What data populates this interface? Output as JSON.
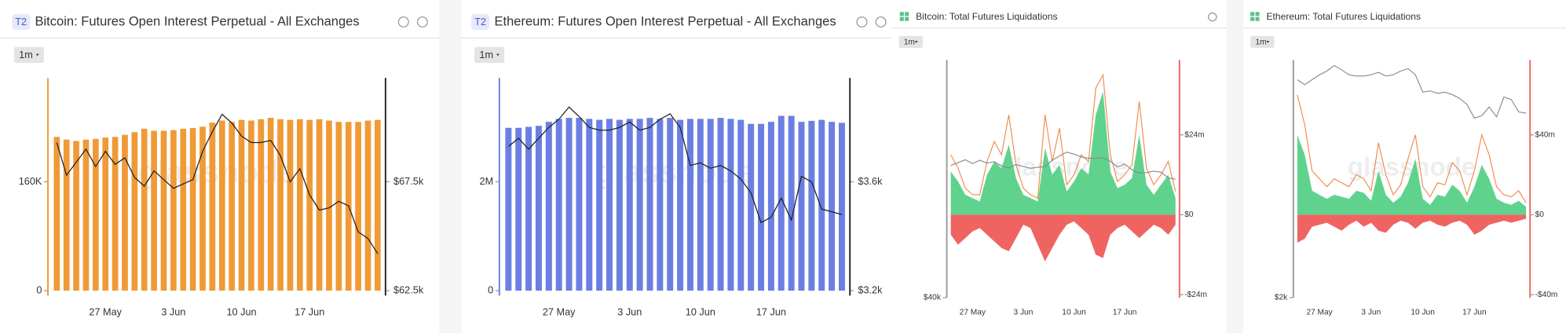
{
  "chart_data": [
    {
      "type": "bar",
      "badge": "T2",
      "title": "Bitcoin: Futures Open Interest Perpetual - All Exchanges",
      "range_button": "1m",
      "watermark": "glassnode",
      "categories": [
        null,
        null,
        null,
        null,
        null,
        "27 May",
        null,
        null,
        null,
        null,
        null,
        null,
        "3 Jun",
        null,
        null,
        null,
        null,
        null,
        null,
        "10 Jun",
        null,
        null,
        null,
        null,
        null,
        null,
        "17 Jun",
        null,
        null,
        null,
        null,
        null,
        null,
        null
      ],
      "ylim": [
        0,
        312700
      ],
      "yticks": [
        0,
        {
          "value": 160000,
          "label": "160K"
        }
      ],
      "y2lim": [
        62500,
        72270
      ],
      "y2ticks": [
        {
          "value": 62500,
          "label": "$62.5k"
        },
        {
          "value": 67500,
          "label": "$67.5k"
        }
      ],
      "series": [
        {
          "type": "bar",
          "color": "#f09a36",
          "values": [
            226000,
            222000,
            220000,
            222000,
            223000,
            225000,
            226000,
            229000,
            233000,
            238000,
            235000,
            235000,
            236000,
            238000,
            239000,
            241000,
            247000,
            250000,
            248000,
            251000,
            250000,
            252000,
            254000,
            252000,
            251000,
            252000,
            251000,
            252000,
            250000,
            248000,
            248000,
            248000,
            250000,
            251000
          ]
        },
        {
          "type": "line",
          "color": "#222222",
          "axis": "y2",
          "values": [
            69300,
            67800,
            68400,
            69000,
            68200,
            68900,
            68300,
            68600,
            67700,
            67300,
            68000,
            67600,
            67200,
            67400,
            67600,
            68900,
            69800,
            70600,
            70200,
            69600,
            69300,
            69300,
            69400,
            68700,
            67500,
            68100,
            66900,
            66200,
            66300,
            66600,
            66400,
            65200,
            64900,
            64200
          ]
        }
      ]
    },
    {
      "type": "bar",
      "badge": "T2",
      "title": "Ethereum: Futures Open Interest Perpetual - All Exchanges",
      "range_button": "1m",
      "watermark": "glassnode",
      "categories": [
        null,
        null,
        null,
        null,
        null,
        "27 May",
        null,
        null,
        null,
        null,
        null,
        null,
        "3 Jun",
        null,
        null,
        null,
        null,
        null,
        null,
        "10 Jun",
        null,
        null,
        null,
        null,
        null,
        null,
        "17 Jun",
        null,
        null,
        null,
        null,
        null,
        null,
        null
      ],
      "ylim": [
        0,
        3908000
      ],
      "yticks": [
        0,
        {
          "value": 2000000,
          "label": "2M"
        }
      ],
      "y2lim": [
        3200,
        3982
      ],
      "y2ticks": [
        {
          "value": 3200,
          "label": "$3.2k"
        },
        {
          "value": 3600,
          "label": "$3.6k"
        }
      ],
      "series": [
        {
          "type": "bar",
          "color": "#6b7fe3",
          "values": [
            2991000,
            2991000,
            3009000,
            3028000,
            3101000,
            3156000,
            3174000,
            3174000,
            3156000,
            3138000,
            3156000,
            3138000,
            3156000,
            3156000,
            3174000,
            3156000,
            3174000,
            3138000,
            3156000,
            3156000,
            3156000,
            3174000,
            3156000,
            3138000,
            3064000,
            3064000,
            3101000,
            3211000,
            3211000,
            3101000,
            3119000,
            3138000,
            3101000,
            3083000
          ]
        },
        {
          "type": "line",
          "color": "#222222",
          "axis": "y2",
          "values": [
            3730,
            3760,
            3720,
            3760,
            3800,
            3830,
            3875,
            3840,
            3800,
            3790,
            3790,
            3800,
            3820,
            3790,
            3800,
            3830,
            3850,
            3800,
            3660,
            3670,
            3650,
            3660,
            3640,
            3610,
            3560,
            3450,
            3470,
            3540,
            3460,
            3620,
            3600,
            3500,
            3490,
            3480
          ]
        }
      ]
    },
    {
      "type": "area",
      "title": "Bitcoin: Total Futures Liquidations",
      "range_button": "1m",
      "watermark": "glassnode",
      "categories": [
        null,
        null,
        null,
        "27 May",
        null,
        null,
        null,
        null,
        null,
        null,
        "3 Jun",
        null,
        null,
        null,
        null,
        null,
        null,
        "10 Jun",
        null,
        null,
        null,
        null,
        null,
        null,
        "17 Jun",
        null,
        null,
        null,
        null,
        null,
        null,
        null
      ],
      "ylim": [
        40000,
        90000
      ],
      "yticks": [
        {
          "value": 40000,
          "label": "$40k"
        }
      ],
      "y2lim": [
        -24900000,
        46500000
      ],
      "y2ticks": [
        {
          "value": -24000000,
          "label": "-$24m"
        },
        {
          "value": 0,
          "label": "$0"
        },
        {
          "value": 24000000,
          "label": "$24m"
        }
      ],
      "series": [
        {
          "type": "area",
          "color": "#5fd38d",
          "axis": "y2",
          "values": [
            13000000,
            10000000,
            6000000,
            5000000,
            4000000,
            12000000,
            16000000,
            14000000,
            21000000,
            11000000,
            6000000,
            5000000,
            4000000,
            20000000,
            12000000,
            15000000,
            7000000,
            10000000,
            14000000,
            12000000,
            30000000,
            37000000,
            13000000,
            8000000,
            9000000,
            11000000,
            24000000,
            9000000,
            6000000,
            9000000,
            12000000,
            5000000
          ]
        },
        {
          "type": "area",
          "color": "#ef6461",
          "axis": "y2",
          "values": [
            -6000000,
            -9000000,
            -7000000,
            -5000000,
            -4000000,
            -6000000,
            -8000000,
            -10000000,
            -11000000,
            -7000000,
            -3000000,
            -4000000,
            -9000000,
            -14000000,
            -10000000,
            -6000000,
            -3000000,
            -2000000,
            -4000000,
            -6000000,
            -12000000,
            -13000000,
            -6000000,
            -4000000,
            -3000000,
            -5000000,
            -7000000,
            -5000000,
            -3000000,
            -4000000,
            -6000000,
            -3000000
          ]
        },
        {
          "type": "line",
          "color": "#f08a4b",
          "axis": "y2",
          "values": [
            18000000,
            14000000,
            8000000,
            6000000,
            6000000,
            16000000,
            22000000,
            18000000,
            30000000,
            15000000,
            8000000,
            6000000,
            5000000,
            30000000,
            16000000,
            26000000,
            9000000,
            12000000,
            18000000,
            16000000,
            38000000,
            42000000,
            18000000,
            10000000,
            12000000,
            15000000,
            34000000,
            14000000,
            9000000,
            12000000,
            16000000,
            7000000
          ]
        },
        {
          "type": "line",
          "color": "#8a8a8a",
          "values": [
            67800,
            68400,
            69000,
            68200,
            68900,
            68300,
            68600,
            67700,
            67300,
            68000,
            67600,
            67200,
            67400,
            67600,
            68900,
            69800,
            70600,
            70200,
            69600,
            69300,
            69300,
            69400,
            68700,
            67500,
            68100,
            66900,
            66200,
            66300,
            66600,
            66400,
            65200,
            64900
          ]
        }
      ]
    },
    {
      "type": "area",
      "title": "Ethereum: Total Futures Liquidations",
      "range_button": "1m",
      "watermark": "glassnode",
      "categories": [
        null,
        null,
        null,
        "27 May",
        null,
        null,
        null,
        null,
        null,
        null,
        "3 Jun",
        null,
        null,
        null,
        null,
        null,
        null,
        "10 Jun",
        null,
        null,
        null,
        null,
        null,
        null,
        "17 Jun",
        null,
        null,
        null,
        null,
        null,
        null,
        null
      ],
      "ylim": [
        2000,
        3920
      ],
      "yticks": [
        {
          "value": 2000,
          "label": "$2k"
        }
      ],
      "y2lim": [
        -41500000,
        77500000
      ],
      "y2ticks": [
        {
          "value": -40000000,
          "label": "-$40m"
        },
        {
          "value": 0,
          "label": "$0"
        },
        {
          "value": 40000000,
          "label": "$40m"
        }
      ],
      "series": [
        {
          "type": "area",
          "color": "#5fd38d",
          "axis": "y2",
          "values": [
            40000000,
            30000000,
            12000000,
            10000000,
            8000000,
            10000000,
            9000000,
            8000000,
            12000000,
            11000000,
            7000000,
            22000000,
            10000000,
            6000000,
            9000000,
            16000000,
            28000000,
            8000000,
            5000000,
            10000000,
            9000000,
            15000000,
            12000000,
            6000000,
            14000000,
            25000000,
            18000000,
            8000000,
            6000000,
            5000000,
            7000000,
            4000000
          ]
        },
        {
          "type": "area",
          "color": "#ef6461",
          "axis": "y2",
          "values": [
            -14000000,
            -12000000,
            -6000000,
            -5000000,
            -4000000,
            -6000000,
            -8000000,
            -5000000,
            -3000000,
            -6000000,
            -4000000,
            -8000000,
            -9000000,
            -5000000,
            -3000000,
            -4000000,
            -7000000,
            -4000000,
            -3000000,
            -5000000,
            -6000000,
            -4000000,
            -3000000,
            -5000000,
            -10000000,
            -8000000,
            -5000000,
            -4000000,
            -3000000,
            -4000000,
            -3000000,
            -2000000
          ]
        },
        {
          "type": "line",
          "color": "#f08a4b",
          "axis": "y2",
          "values": [
            60000000,
            45000000,
            22000000,
            18000000,
            14000000,
            18000000,
            16000000,
            14000000,
            20000000,
            18000000,
            12000000,
            36000000,
            20000000,
            10000000,
            15000000,
            28000000,
            40000000,
            14000000,
            9000000,
            16000000,
            15000000,
            26000000,
            22000000,
            10000000,
            22000000,
            40000000,
            30000000,
            14000000,
            10000000,
            9000000,
            12000000,
            6000000
          ]
        },
        {
          "type": "line",
          "color": "#8a8a8a",
          "values": [
            3760,
            3720,
            3760,
            3800,
            3830,
            3875,
            3840,
            3800,
            3790,
            3790,
            3800,
            3820,
            3790,
            3800,
            3830,
            3850,
            3800,
            3660,
            3670,
            3650,
            3660,
            3640,
            3610,
            3560,
            3450,
            3470,
            3540,
            3460,
            3620,
            3600,
            3500,
            3490
          ]
        }
      ]
    }
  ]
}
